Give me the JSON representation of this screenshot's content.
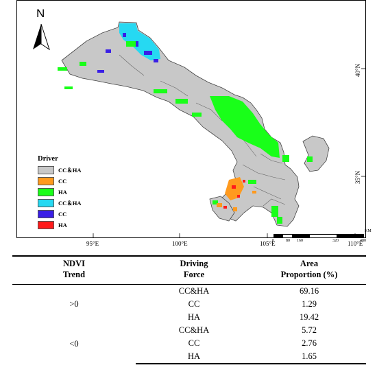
{
  "map": {
    "north_label": "N",
    "lat_labels": [
      "40°N",
      "35°N"
    ],
    "lon_labels": [
      "95°E",
      "100°E",
      "105°E",
      "110°E"
    ],
    "legend": {
      "title": "Driver",
      "items": [
        {
          "label": "CC＆HA",
          "color": "#c8c8c8"
        },
        {
          "label": "CC",
          "color": "#ff9a1e"
        },
        {
          "label": "HA",
          "color": "#19ff19"
        },
        {
          "label": "CC＆HA",
          "color": "#26d9f2"
        },
        {
          "label": "CC",
          "color": "#3a1fe6"
        },
        {
          "label": "HA",
          "color": "#ff1a1a"
        }
      ]
    },
    "scale": {
      "unit": "KM",
      "ticks": [
        "0",
        "80",
        "160",
        "320",
        "480"
      ]
    },
    "colors": {
      "base": "#c8c8c8",
      "boundary": "#555555",
      "green": "#19ff19",
      "cyan": "#26d9f2",
      "blue": "#3a1fe6",
      "orange": "#ff9a1e",
      "red": "#ff1a1a"
    }
  },
  "table": {
    "headers": [
      "NDVI\nTrend",
      "Driving\nForce",
      "Area\nProportion (%)"
    ],
    "groups": [
      {
        "trend": ">0",
        "rows": [
          {
            "force": "CC&HA",
            "area": "69.16"
          },
          {
            "force": "CC",
            "area": "1.29"
          },
          {
            "force": "HA",
            "area": "19.42"
          }
        ]
      },
      {
        "trend": "<0",
        "rows": [
          {
            "force": "CC&HA",
            "area": "5.72"
          },
          {
            "force": "CC",
            "area": "2.76"
          },
          {
            "force": "HA",
            "area": "1.65"
          }
        ]
      }
    ]
  }
}
